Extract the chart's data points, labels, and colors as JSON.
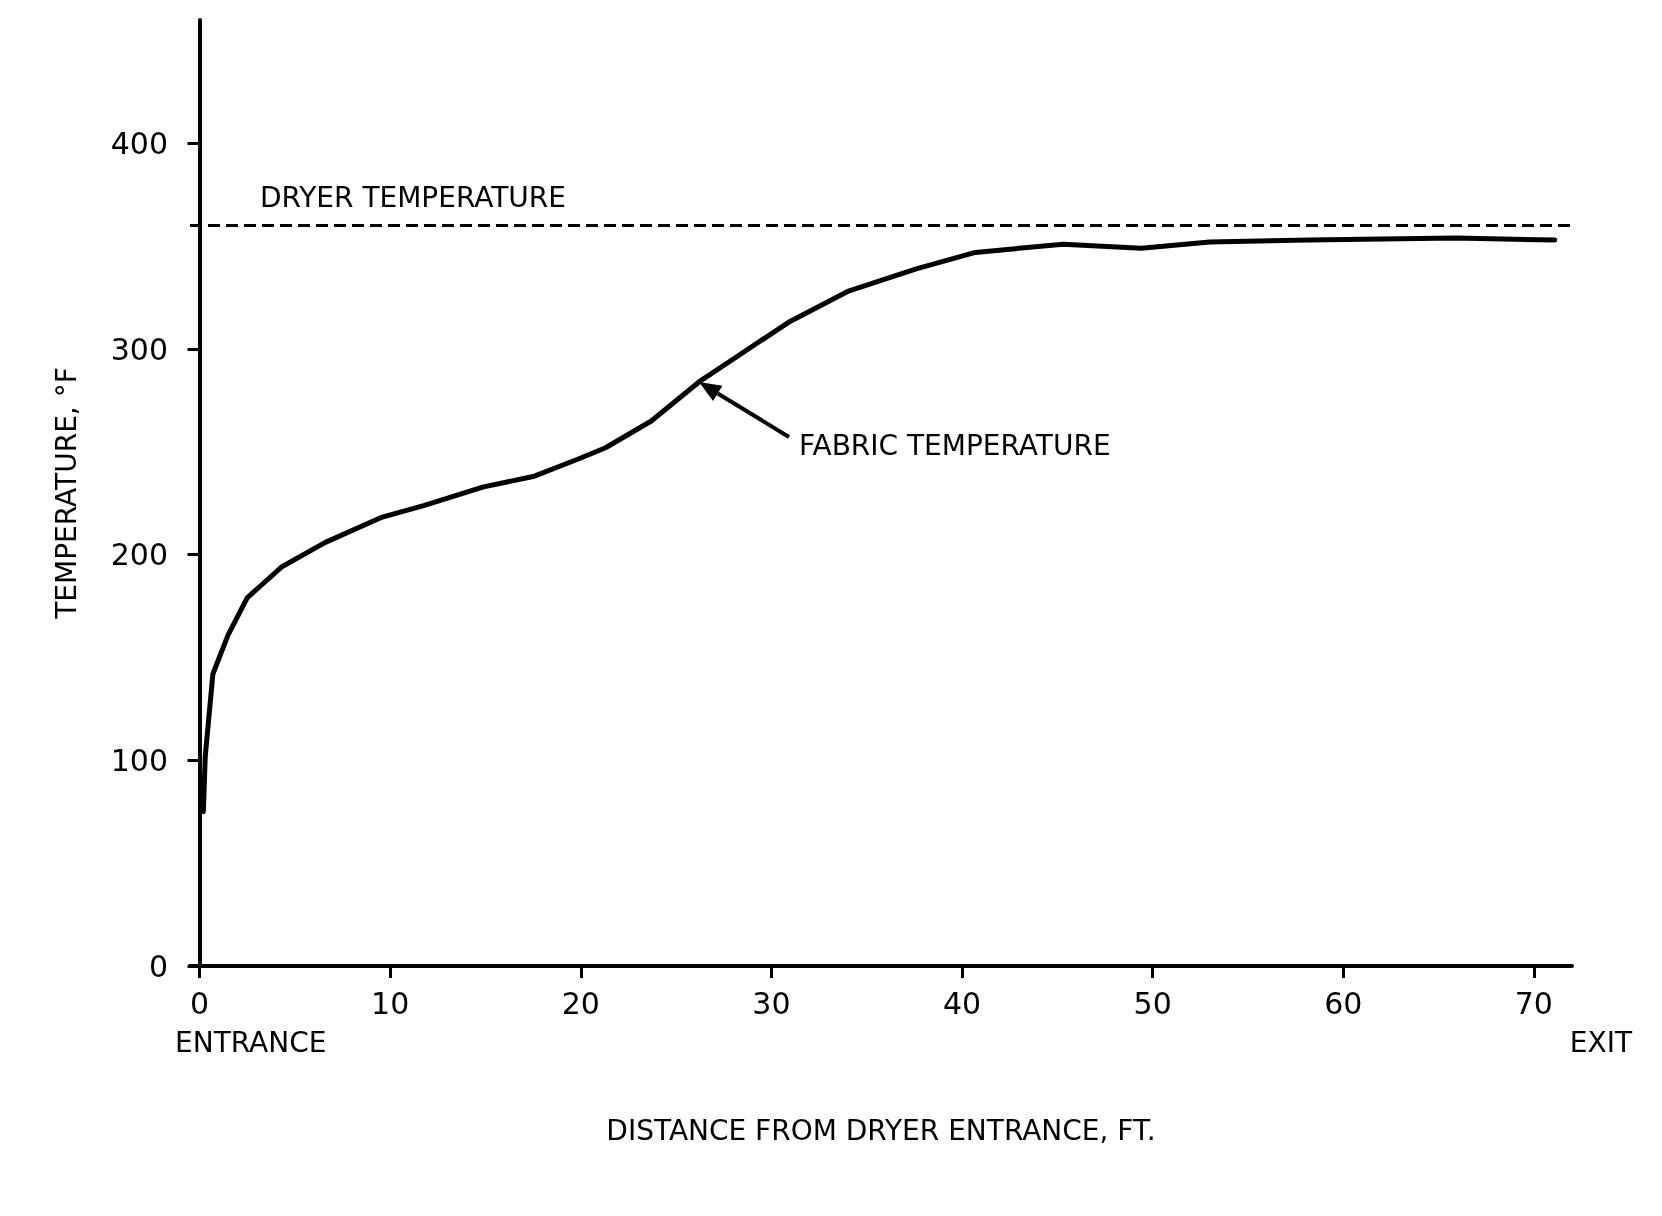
{
  "chart_data": {
    "type": "line",
    "xlabel": "DISTANCE FROM DRYER ENTRANCE, FT.",
    "ylabel": "TEMPERATURE, °F",
    "x": [
      0.2,
      0.3,
      0.7,
      1.5,
      2.5,
      4.3,
      6.6,
      9.5,
      11.8,
      14.9,
      17.5,
      20,
      21.3,
      23.7,
      26.2,
      28.3,
      30.9,
      34,
      37.6,
      40.7,
      45.3,
      49.4,
      53,
      58.2,
      65.9,
      71.1
    ],
    "series": [
      {
        "color": "#000000",
        "values": [
          75,
          102,
          142,
          161,
          179,
          194,
          206,
          218,
          224,
          233,
          238,
          247,
          252,
          265,
          284,
          297,
          313,
          328,
          339,
          347,
          351,
          349,
          352,
          353,
          354,
          353
        ]
      }
    ],
    "xlim": [
      -0.5,
      72
    ],
    "xticks": [
      0,
      10,
      20,
      30,
      40,
      50,
      60,
      70
    ],
    "ylim": [
      0,
      460
    ],
    "yticks": [
      0,
      100,
      200,
      300,
      400
    ],
    "ref_lines": [
      {
        "axis": "y",
        "value": 360,
        "label": "DRYER TEMPERATURE",
        "color": "#000000",
        "line_style": "dashed"
      }
    ],
    "annotations": [
      "FABRIC TEMPERATURE",
      "ENTRANCE",
      "EXIT"
    ],
    "grid": false,
    "marker": "none",
    "line_style": "solid"
  }
}
